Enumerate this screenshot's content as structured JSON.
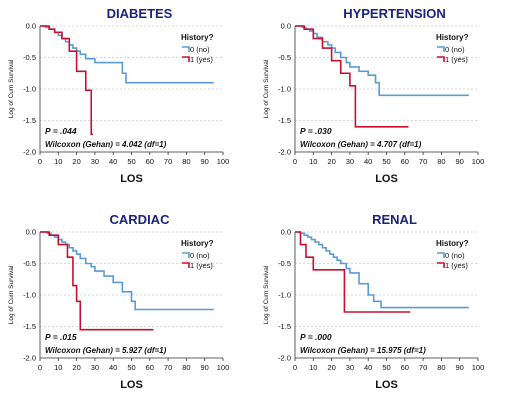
{
  "chart_data": [
    {
      "type": "line",
      "title": "DIABETES",
      "xlabel": "LOS",
      "ylabel": "Log of Cum Survival",
      "xlim": [
        0,
        100
      ],
      "ylim": [
        -2.0,
        0.0
      ],
      "xticks": [
        "0",
        "10",
        "20",
        "30",
        "40",
        "50",
        "60",
        "70",
        "80",
        "90",
        "100"
      ],
      "yticks": [
        "0.0",
        "-0.5",
        "-1.0",
        "-1.5",
        "-2.0"
      ],
      "grid": true,
      "legend": {
        "title": "History?",
        "placement": "top-right",
        "entries": [
          "0 (no)",
          "1 (yes)"
        ]
      },
      "p_value": "P = .044",
      "test": "Wilcoxon (Gehan) = 4.042 (df=1)",
      "series": [
        {
          "name": "0 (no)",
          "color": "#5b9bd5",
          "x": [
            0,
            3,
            5,
            8,
            10,
            12,
            14,
            16,
            18,
            20,
            22,
            25,
            30,
            45,
            47,
            95
          ],
          "y": [
            0,
            -0.02,
            -0.05,
            -0.1,
            -0.15,
            -0.2,
            -0.25,
            -0.3,
            -0.35,
            -0.4,
            -0.45,
            -0.52,
            -0.58,
            -0.75,
            -0.9,
            -0.9
          ]
        },
        {
          "name": "1 (yes)",
          "color": "#c8102e",
          "x": [
            0,
            5,
            8,
            12,
            16,
            20,
            25,
            28,
            29
          ],
          "y": [
            0,
            -0.05,
            -0.1,
            -0.2,
            -0.4,
            -0.72,
            -1.02,
            -1.72,
            -1.72
          ]
        }
      ]
    },
    {
      "type": "line",
      "title": "HYPERTENSION",
      "xlabel": "LOS",
      "ylabel": "Log of Cum Survival",
      "xlim": [
        0,
        100
      ],
      "ylim": [
        -2.0,
        0.0
      ],
      "xticks": [
        "0",
        "10",
        "20",
        "30",
        "40",
        "50",
        "60",
        "70",
        "80",
        "90",
        "100"
      ],
      "yticks": [
        "0.0",
        "-0.5",
        "-1.0",
        "-1.5",
        "-2.0"
      ],
      "grid": true,
      "legend": {
        "title": "History?",
        "placement": "top-right",
        "entries": [
          "0 (no)",
          "1 (yes)"
        ]
      },
      "p_value": "P = .030",
      "test": "Wilcoxon (Gehan) = 4.707 (df=1)",
      "series": [
        {
          "name": "0 (no)",
          "color": "#5b9bd5",
          "x": [
            0,
            4,
            6,
            8,
            10,
            12,
            15,
            18,
            20,
            22,
            25,
            28,
            30,
            35,
            40,
            44,
            46,
            95
          ],
          "y": [
            0,
            -0.02,
            -0.05,
            -0.08,
            -0.12,
            -0.18,
            -0.25,
            -0.3,
            -0.35,
            -0.42,
            -0.5,
            -0.58,
            -0.65,
            -0.72,
            -0.78,
            -0.9,
            -1.1,
            -1.1
          ]
        },
        {
          "name": "1 (yes)",
          "color": "#c8102e",
          "x": [
            0,
            5,
            10,
            15,
            20,
            25,
            30,
            33,
            62
          ],
          "y": [
            0,
            -0.05,
            -0.2,
            -0.35,
            -0.55,
            -0.75,
            -0.95,
            -1.6,
            -1.6
          ]
        }
      ]
    },
    {
      "type": "line",
      "title": "CARDIAC",
      "xlabel": "LOS",
      "ylabel": "Log of Cum Survival",
      "xlim": [
        0,
        100
      ],
      "ylim": [
        -2.0,
        0.0
      ],
      "xticks": [
        "0",
        "10",
        "20",
        "30",
        "40",
        "50",
        "60",
        "70",
        "80",
        "90",
        "100"
      ],
      "yticks": [
        "0.0",
        "-0.5",
        "-1.0",
        "-1.5",
        "-2.0"
      ],
      "grid": true,
      "legend": {
        "title": "History?",
        "placement": "top-right",
        "entries": [
          "0 (no)",
          "1 (yes)"
        ]
      },
      "p_value": "P = .015",
      "test": "Wilcoxon (Gehan) = 5.927 (df=1)",
      "series": [
        {
          "name": "0 (no)",
          "color": "#5b9bd5",
          "x": [
            0,
            4,
            6,
            8,
            10,
            12,
            14,
            16,
            18,
            20,
            22,
            25,
            28,
            30,
            35,
            40,
            45,
            50,
            52,
            95
          ],
          "y": [
            0,
            -0.02,
            -0.05,
            -0.08,
            -0.12,
            -0.16,
            -0.2,
            -0.25,
            -0.3,
            -0.35,
            -0.42,
            -0.5,
            -0.55,
            -0.62,
            -0.7,
            -0.8,
            -0.95,
            -1.1,
            -1.23,
            -1.23
          ]
        },
        {
          "name": "1 (yes)",
          "color": "#c8102e",
          "x": [
            0,
            5,
            10,
            15,
            18,
            20,
            22,
            62
          ],
          "y": [
            0,
            -0.05,
            -0.2,
            -0.4,
            -0.85,
            -1.1,
            -1.55,
            -1.55
          ]
        }
      ]
    },
    {
      "type": "line",
      "title": "RENAL",
      "xlabel": "LOS",
      "ylabel": "Log of Cum Survival",
      "xlim": [
        0,
        100
      ],
      "ylim": [
        -2.0,
        0.0
      ],
      "xticks": [
        "0",
        "10",
        "20",
        "30",
        "40",
        "50",
        "60",
        "70",
        "80",
        "90",
        "100"
      ],
      "yticks": [
        "0.0",
        "-0.5",
        "-1.0",
        "-1.5",
        "-2.0"
      ],
      "grid": true,
      "legend": {
        "title": "History?",
        "placement": "top-right",
        "entries": [
          "0 (no)",
          "1 (yes)"
        ]
      },
      "p_value": "P = .000",
      "test": "Wilcoxon (Gehan) = 15.975 (df=1)",
      "series": [
        {
          "name": "0 (no)",
          "color": "#5b9bd5",
          "x": [
            0,
            3,
            5,
            7,
            9,
            11,
            13,
            15,
            17,
            19,
            21,
            23,
            25,
            28,
            30,
            35,
            40,
            43,
            47,
            95
          ],
          "y": [
            0,
            -0.02,
            -0.05,
            -0.08,
            -0.12,
            -0.16,
            -0.2,
            -0.25,
            -0.3,
            -0.35,
            -0.4,
            -0.45,
            -0.5,
            -0.58,
            -0.65,
            -0.82,
            -1.0,
            -1.1,
            -1.2,
            -1.2
          ]
        },
        {
          "name": "1 (yes)",
          "color": "#c8102e",
          "x": [
            0,
            3,
            6,
            10,
            20,
            27,
            63
          ],
          "y": [
            0,
            -0.2,
            -0.4,
            -0.6,
            -0.6,
            -1.27,
            -1.27
          ]
        }
      ]
    }
  ]
}
